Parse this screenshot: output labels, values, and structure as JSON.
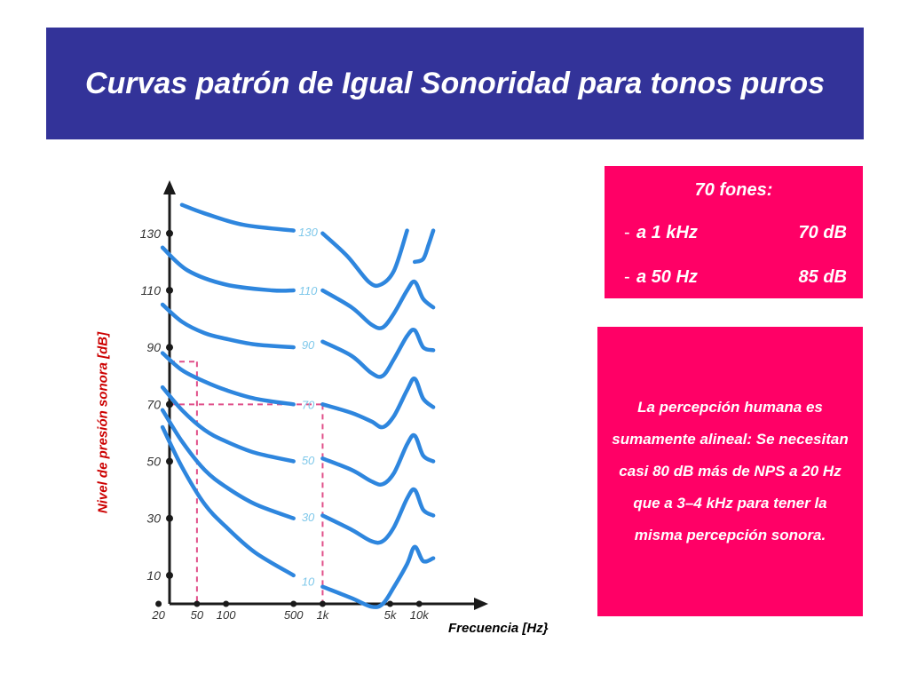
{
  "title": "Curvas patrón de Igual Sonoridad para tonos puros",
  "info_box": {
    "heading": "70 fones:",
    "rows": [
      {
        "dash": "-",
        "freq": "a 1 kHz",
        "level": "70 dB"
      },
      {
        "dash": "-",
        "freq": "a 50 Hz",
        "level": "85 dB"
      }
    ]
  },
  "perception_box": {
    "text": "La percepción humana es sumamente alineal: Se necesitan casi 80 dB más de  NPS a 20 Hz que a 3–4 kHz para tener la misma percepción sonora."
  },
  "colors": {
    "banner": "#333399",
    "pink_box": "#ff0066",
    "curve": "#2e86de",
    "guide": "#e0508a",
    "axis": "#1a1a1a"
  },
  "chart_data": {
    "type": "line",
    "xlabel": "Frecuencia [Hz}",
    "ylabel": "Nivel de presión sonora  [dB]",
    "x_scale": "log",
    "xlim": [
      15,
      18000
    ],
    "ylim": [
      0,
      148
    ],
    "x_ticks": [
      {
        "value": 20,
        "label": "20"
      },
      {
        "value": 50,
        "label": "50"
      },
      {
        "value": 100,
        "label": "100"
      },
      {
        "value": 500,
        "label": "500"
      },
      {
        "value": 1000,
        "label": "1k"
      },
      {
        "value": 5000,
        "label": "5k"
      },
      {
        "value": 10000,
        "label": "10k"
      }
    ],
    "y_ticks": [
      {
        "value": 10,
        "label": "10"
      },
      {
        "value": 30,
        "label": "30"
      },
      {
        "value": 50,
        "label": "50"
      },
      {
        "value": 70,
        "label": "70"
      },
      {
        "value": 90,
        "label": "90"
      },
      {
        "value": 110,
        "label": "110"
      },
      {
        "value": 130,
        "label": "130"
      }
    ],
    "series": [
      {
        "name": "130",
        "points": [
          [
            35,
            140
          ],
          [
            60,
            137
          ],
          [
            150,
            133
          ],
          [
            500,
            131
          ]
        ],
        "points_right": [
          [
            1000,
            130
          ],
          [
            1800,
            122
          ],
          [
            3000,
            113
          ],
          [
            4000,
            112
          ],
          [
            5500,
            117
          ],
          [
            7500,
            131
          ]
        ],
        "points_tail": [
          [
            9000,
            120
          ],
          [
            11000,
            121
          ],
          [
            12500,
            126
          ],
          [
            14000,
            131
          ]
        ]
      },
      {
        "name": "110",
        "points": [
          [
            22,
            125
          ],
          [
            40,
            117
          ],
          [
            100,
            112
          ],
          [
            300,
            110
          ],
          [
            500,
            110
          ]
        ],
        "points_right": [
          [
            1000,
            110
          ],
          [
            2000,
            104
          ],
          [
            3200,
            98
          ],
          [
            4200,
            97
          ],
          [
            5500,
            102
          ],
          [
            7500,
            110
          ],
          [
            9000,
            113
          ],
          [
            11000,
            107
          ],
          [
            14000,
            104
          ]
        ]
      },
      {
        "name": "90",
        "points": [
          [
            22,
            105
          ],
          [
            35,
            99
          ],
          [
            60,
            95
          ],
          [
            100,
            93
          ],
          [
            200,
            91
          ],
          [
            500,
            90
          ]
        ],
        "points_right": [
          [
            1000,
            92
          ],
          [
            2000,
            87
          ],
          [
            3200,
            81
          ],
          [
            4200,
            80
          ],
          [
            5500,
            86
          ],
          [
            7500,
            94
          ],
          [
            9000,
            96
          ],
          [
            11000,
            90
          ],
          [
            14000,
            89
          ]
        ]
      },
      {
        "name": "70",
        "points": [
          [
            22,
            88
          ],
          [
            35,
            82
          ],
          [
            60,
            78
          ],
          [
            100,
            75
          ],
          [
            200,
            72
          ],
          [
            500,
            70
          ]
        ],
        "points_right": [
          [
            1000,
            70
          ],
          [
            2000,
            67
          ],
          [
            3200,
            64
          ],
          [
            4200,
            62
          ],
          [
            5500,
            66
          ],
          [
            7500,
            75
          ],
          [
            9000,
            79
          ],
          [
            11000,
            72
          ],
          [
            14000,
            69
          ]
        ]
      },
      {
        "name": "50",
        "points": [
          [
            22,
            76
          ],
          [
            35,
            68
          ],
          [
            60,
            61
          ],
          [
            100,
            57
          ],
          [
            200,
            53
          ],
          [
            500,
            50
          ]
        ],
        "points_right": [
          [
            1000,
            51
          ],
          [
            2000,
            47
          ],
          [
            3200,
            43
          ],
          [
            4200,
            42
          ],
          [
            5500,
            46
          ],
          [
            7500,
            56
          ],
          [
            9000,
            59
          ],
          [
            11000,
            52
          ],
          [
            14000,
            50
          ]
        ]
      },
      {
        "name": "30",
        "points": [
          [
            22,
            68
          ],
          [
            35,
            57
          ],
          [
            60,
            47
          ],
          [
            100,
            41
          ],
          [
            200,
            35
          ],
          [
            500,
            30
          ]
        ],
        "points_right": [
          [
            1000,
            31
          ],
          [
            2000,
            26
          ],
          [
            3200,
            22
          ],
          [
            4200,
            22
          ],
          [
            5500,
            27
          ],
          [
            7500,
            37
          ],
          [
            9000,
            40
          ],
          [
            11000,
            33
          ],
          [
            14000,
            31
          ]
        ]
      },
      {
        "name": "10",
        "points": [
          [
            22,
            62
          ],
          [
            35,
            48
          ],
          [
            60,
            35
          ],
          [
            100,
            27
          ],
          [
            200,
            18
          ],
          [
            500,
            10
          ]
        ],
        "points_right": [
          [
            1000,
            6
          ],
          [
            2000,
            2
          ],
          [
            3200,
            -1
          ],
          [
            4200,
            0
          ],
          [
            5500,
            6
          ],
          [
            7500,
            14
          ],
          [
            9000,
            20
          ],
          [
            11000,
            15
          ],
          [
            14000,
            16
          ]
        ]
      }
    ],
    "guides": [
      {
        "freq": 50,
        "level": 85
      },
      {
        "freq": 1000,
        "level": 70
      }
    ]
  }
}
